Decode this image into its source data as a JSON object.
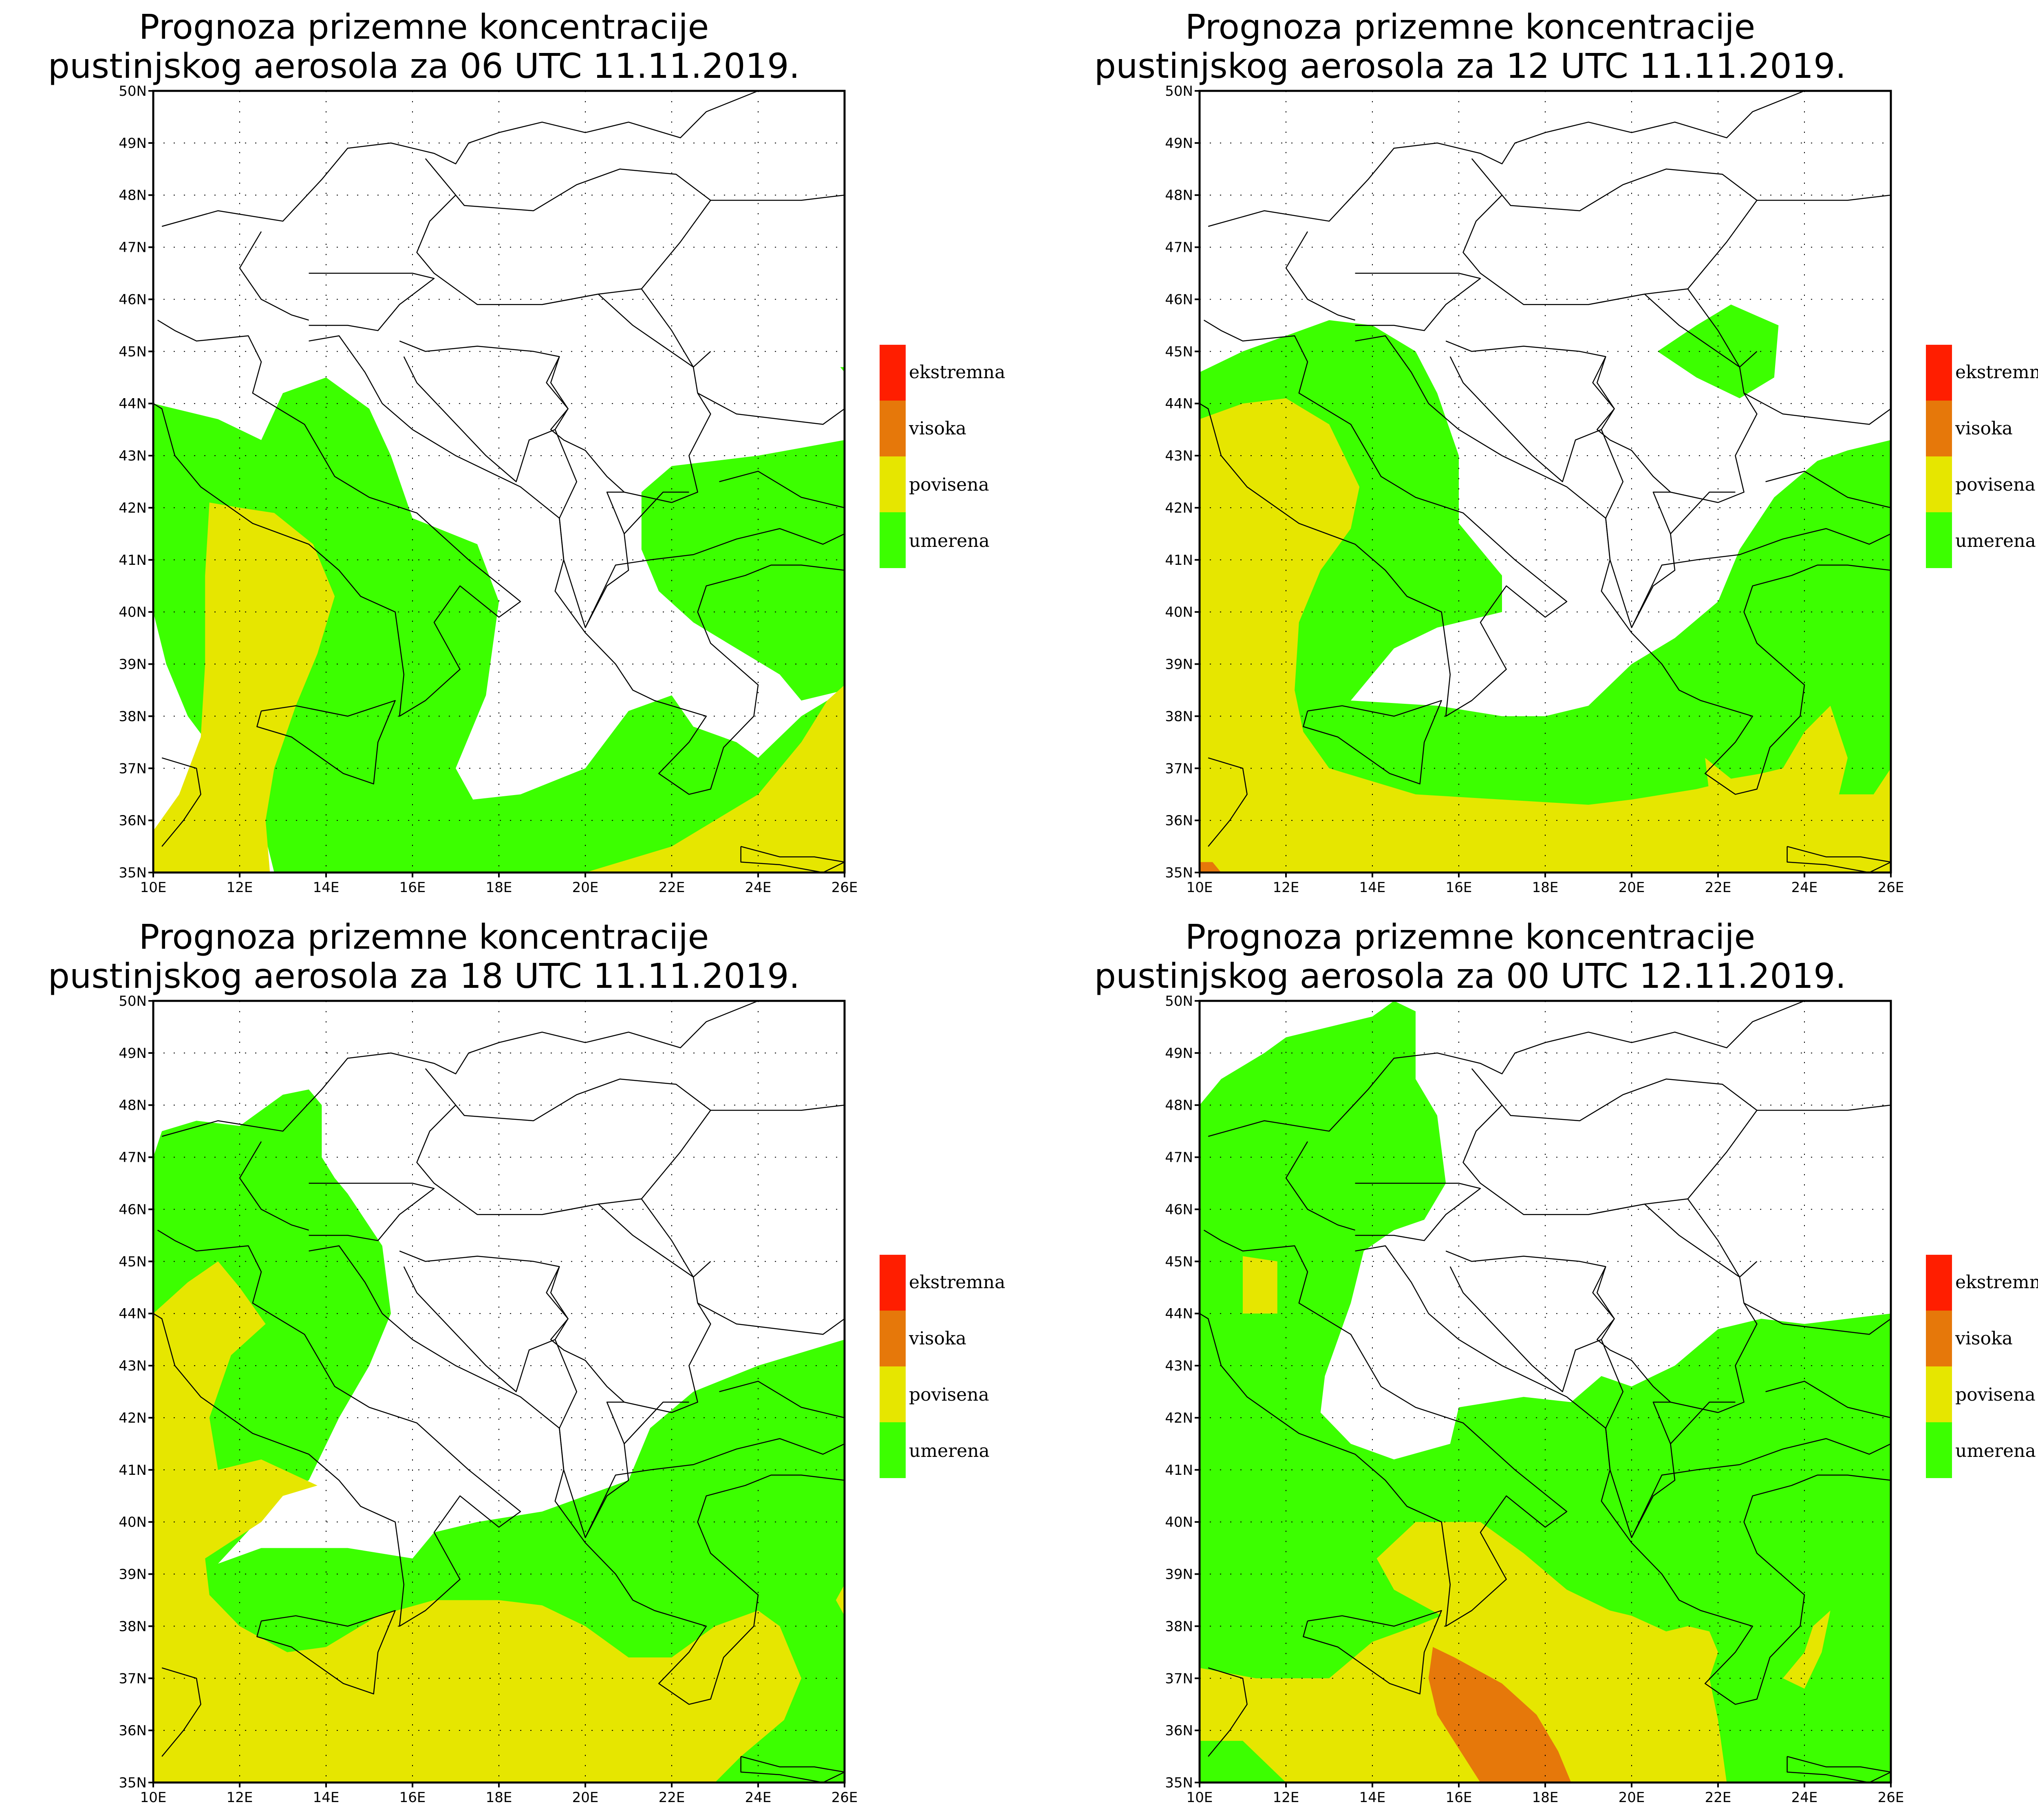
{
  "panels": [
    {
      "title_line1": "Prognoza prizemne koncentracije",
      "title_line2": "pustinjskog aerosola za 06 UTC 11.11.2019."
    },
    {
      "title_line1": "Prognoza prizemne koncentracije",
      "title_line2": "pustinjskog aerosola za 12 UTC 11.11.2019."
    },
    {
      "title_line1": "Prognoza prizemne koncentracije",
      "title_line2": "pustinjskog aerosola za 18 UTC 11.11.2019."
    },
    {
      "title_line1": "Prognoza prizemne koncentracije",
      "title_line2": "pustinjskog aerosola za 00 UTC 12.11.2019."
    }
  ],
  "axes": {
    "lon_labels": [
      "10E",
      "12E",
      "14E",
      "16E",
      "18E",
      "20E",
      "22E",
      "24E",
      "26E"
    ],
    "lat_labels": [
      "35N",
      "36N",
      "37N",
      "38N",
      "39N",
      "40N",
      "41N",
      "42N",
      "43N",
      "44N",
      "45N",
      "46N",
      "47N",
      "48N",
      "49N",
      "50N"
    ],
    "lon_range": [
      10,
      26
    ],
    "lat_range": [
      35,
      50
    ]
  },
  "legend": [
    {
      "label": "ekstremna",
      "color": "#ff1e00"
    },
    {
      "label": "visoka",
      "color": "#e6780a"
    },
    {
      "label": "povisena",
      "color": "#e6e600"
    },
    {
      "label": "umerena",
      "color": "#3cff00"
    }
  ],
  "colors": {
    "border": "#000000",
    "grid": "#000000",
    "background": "#ffffff"
  }
}
